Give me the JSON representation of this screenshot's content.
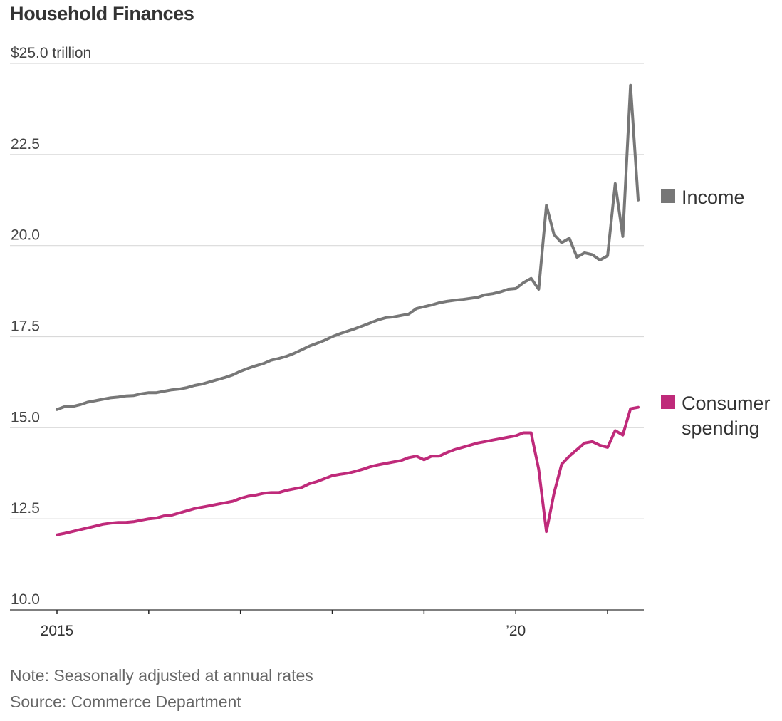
{
  "title": "Household Finances",
  "note": "Note: Seasonally adjusted at annual rates",
  "source": "Source: Commerce Department",
  "colors": {
    "income": "#777777",
    "spending": "#bf2a7a",
    "grid": "#d9d9d9",
    "axis": "#222222"
  },
  "chart_data": {
    "type": "line",
    "title": "Household Finances",
    "xlabel": "",
    "ylabel": "$25.0 trillion",
    "ylim": [
      10.0,
      25.0
    ],
    "yticks": [
      10.0,
      12.5,
      15.0,
      17.5,
      20.0,
      22.5,
      25.0
    ],
    "ytick_labels": [
      "10.0",
      "12.5",
      "15.0",
      "17.5",
      "20.0",
      "22.5",
      "$25.0 trillion"
    ],
    "x_range": [
      "2015-01",
      "2021-05"
    ],
    "x_tick_years": [
      2015,
      2016,
      2017,
      2018,
      2019,
      2020,
      2021
    ],
    "x_tick_labels": [
      {
        "year": 2015,
        "label": "2015"
      },
      {
        "year": 2020,
        "label": "’20"
      }
    ],
    "grid": true,
    "legend": "right",
    "series": [
      {
        "name": "Income",
        "key": "income",
        "x_start": "2015-01",
        "frequency": "monthly",
        "values": [
          15.5,
          15.58,
          15.58,
          15.63,
          15.7,
          15.74,
          15.78,
          15.82,
          15.84,
          15.87,
          15.88,
          15.93,
          15.96,
          15.96,
          16.0,
          16.04,
          16.06,
          16.1,
          16.16,
          16.2,
          16.26,
          16.32,
          16.38,
          16.45,
          16.55,
          16.63,
          16.7,
          16.76,
          16.85,
          16.9,
          16.96,
          17.04,
          17.14,
          17.24,
          17.32,
          17.4,
          17.5,
          17.58,
          17.65,
          17.72,
          17.8,
          17.88,
          17.96,
          18.02,
          18.04,
          18.08,
          18.12,
          18.27,
          18.32,
          18.37,
          18.43,
          18.47,
          18.5,
          18.52,
          18.55,
          18.58,
          18.65,
          18.68,
          18.73,
          18.8,
          18.82,
          18.98,
          19.1,
          18.8,
          21.1,
          20.3,
          20.08,
          20.2,
          19.68,
          19.8,
          19.75,
          19.6,
          19.72,
          21.7,
          20.25,
          24.4,
          21.25
        ]
      },
      {
        "name": "Consumer spending",
        "key": "spending",
        "x_start": "2015-01",
        "frequency": "monthly",
        "values": [
          12.06,
          12.1,
          12.15,
          12.2,
          12.25,
          12.3,
          12.35,
          12.38,
          12.4,
          12.4,
          12.42,
          12.46,
          12.5,
          12.52,
          12.58,
          12.6,
          12.66,
          12.72,
          12.78,
          12.82,
          12.86,
          12.9,
          12.94,
          12.98,
          13.06,
          13.12,
          13.15,
          13.2,
          13.22,
          13.22,
          13.28,
          13.32,
          13.36,
          13.46,
          13.52,
          13.6,
          13.68,
          13.72,
          13.75,
          13.8,
          13.86,
          13.93,
          13.98,
          14.02,
          14.06,
          14.1,
          14.18,
          14.22,
          14.12,
          14.22,
          14.22,
          14.32,
          14.4,
          14.46,
          14.52,
          14.58,
          14.62,
          14.66,
          14.7,
          14.74,
          14.78,
          14.86,
          14.86,
          13.86,
          12.15,
          13.2,
          14.0,
          14.22,
          14.4,
          14.58,
          14.62,
          14.52,
          14.46,
          14.92,
          14.8,
          15.52,
          15.56
        ]
      }
    ]
  },
  "legend": {
    "income": {
      "label": "Income"
    },
    "spending": {
      "line1": "Consumer",
      "line2": "spending"
    }
  }
}
